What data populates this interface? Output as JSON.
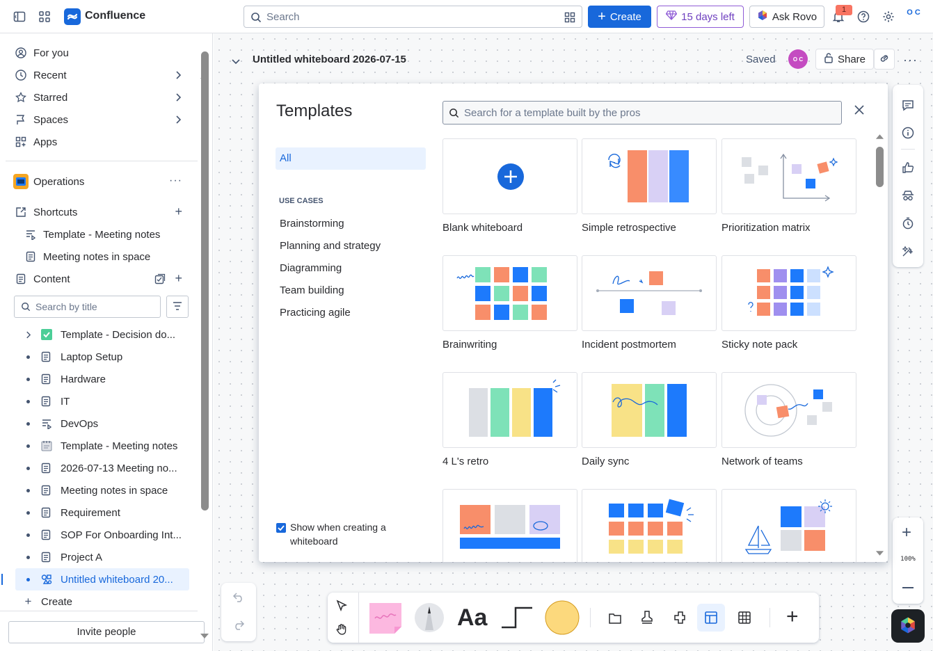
{
  "topbar": {
    "app_name": "Confluence",
    "search_placeholder": "Search",
    "create_label": "Create",
    "trial_label": "15 days left",
    "rovo_label": "Ask Rovo",
    "notification_count": "1",
    "profile_initials": "O C"
  },
  "sidebar": {
    "nav": [
      {
        "label": "For you",
        "icon": "user-circle-icon"
      },
      {
        "label": "Recent",
        "icon": "clock-icon"
      },
      {
        "label": "Starred",
        "icon": "star-icon"
      },
      {
        "label": "Spaces",
        "icon": "globe-icon"
      },
      {
        "label": "Apps",
        "icon": "apps-icon"
      }
    ],
    "space_name": "Operations",
    "shortcuts_label": "Shortcuts",
    "shortcuts": [
      "Template - Meeting notes",
      "Meeting notes in space"
    ],
    "content_label": "Content",
    "search_placeholder": "Search by title",
    "tree": [
      "Template - Decision do...",
      "Laptop Setup",
      "Hardware",
      "IT",
      "DevOps",
      "Template - Meeting notes",
      "2026-07-13 Meeting no...",
      "Meeting notes in space",
      "Requirement",
      "SOP For Onboarding Int...",
      "Project A",
      "Untitled whiteboard 20..."
    ],
    "create_label": "Create",
    "invite_label": "Invite people"
  },
  "main": {
    "title": "Untitled whiteboard 2026-07-15",
    "saved_label": "Saved",
    "avatar_initials": "O C",
    "share_label": "Share",
    "zoom_label": "100%"
  },
  "templates": {
    "title": "Templates",
    "search_placeholder": "Search for a template built by the pros",
    "all_label": "All",
    "use_cases_label": "USE CASES",
    "categories": [
      "Brainstorming",
      "Planning and strategy",
      "Diagramming",
      "Team building",
      "Practicing agile"
    ],
    "show_label": "Show when creating a whiteboard",
    "cards": [
      "Blank whiteboard",
      "Simple retrospective",
      "Prioritization matrix",
      "Brainwriting",
      "Incident postmortem",
      "Sticky note pack",
      "4 L's retro",
      "Daily sync",
      "Network of teams"
    ]
  },
  "colors": {
    "brand_blue": "#1868db",
    "coral": "#f88e6a",
    "lavender": "#d8d0f5",
    "green": "#7ee2b8",
    "yellow": "#f8e287",
    "gray": "#dfe1e6"
  }
}
